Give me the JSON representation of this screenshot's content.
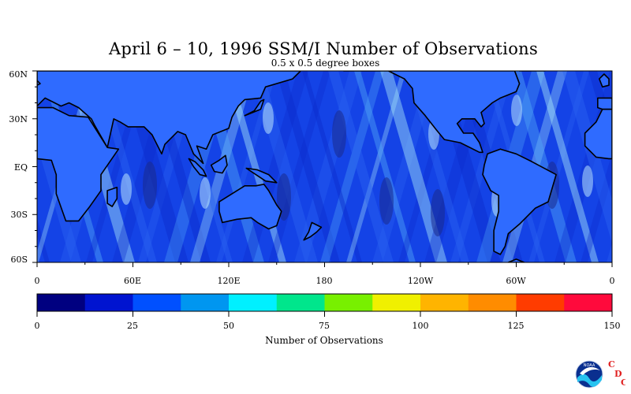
{
  "title": "April 6 – 10, 1996 SSM/I Number of Observations",
  "subtitle": "0.5 x 0.5 degree boxes",
  "map": {
    "lat_labels": [
      "60N",
      "30N",
      "EQ",
      "30S",
      "60S"
    ],
    "lon_labels": [
      "0",
      "60E",
      "120E",
      "180",
      "120W",
      "60W",
      "0"
    ],
    "ocean_colors": [
      "#0b2ccc",
      "#1443e6",
      "#2a64f2",
      "#4fa6f6",
      "#a9e8f8"
    ],
    "land_color": "#2f6bff",
    "coast_color": "#000000"
  },
  "colorbar": {
    "label": "Number of Observations",
    "tick_labels": [
      "0",
      "25",
      "50",
      "75",
      "100",
      "125",
      "150"
    ],
    "colors": [
      "#000080",
      "#0014d0",
      "#0050ff",
      "#0096f0",
      "#00f0ff",
      "#00e68c",
      "#78f000",
      "#f0f000",
      "#ffb400",
      "#ff8c00",
      "#ff3c00",
      "#ff0a3c"
    ]
  },
  "logo": {
    "noaa_text": "NOAA",
    "letters": [
      "C",
      "D",
      "C"
    ]
  }
}
